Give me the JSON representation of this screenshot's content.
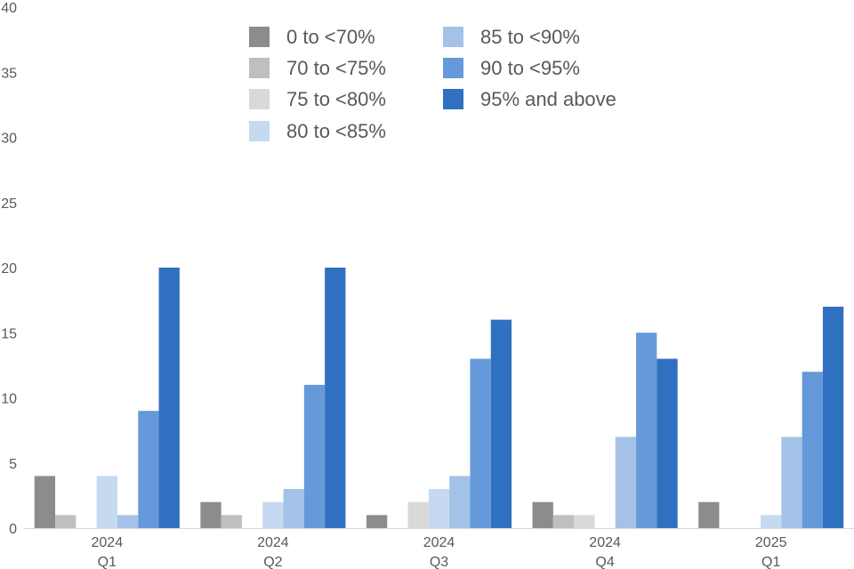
{
  "chart_data": {
    "type": "bar",
    "categories": [
      {
        "year": "2024",
        "quarter": "Q1"
      },
      {
        "year": "2024",
        "quarter": "Q2"
      },
      {
        "year": "2024",
        "quarter": "Q3"
      },
      {
        "year": "2024",
        "quarter": "Q4"
      },
      {
        "year": "2025",
        "quarter": "Q1"
      }
    ],
    "series": [
      {
        "name": "0 to <70%",
        "color": "#8c8c8c",
        "values": [
          4,
          2,
          1,
          2,
          2
        ]
      },
      {
        "name": "70 to <75%",
        "color": "#bfbfbf",
        "values": [
          1,
          1,
          0,
          1,
          0
        ]
      },
      {
        "name": "75 to <80%",
        "color": "#d9d9d9",
        "values": [
          0,
          0,
          2,
          1,
          0
        ]
      },
      {
        "name": "80 to <85%",
        "color": "#c5d9f1",
        "values": [
          4,
          2,
          3,
          0,
          1
        ]
      },
      {
        "name": "85 to <90%",
        "color": "#a4c2e8",
        "values": [
          1,
          3,
          4,
          7,
          7
        ]
      },
      {
        "name": "90 to <95%",
        "color": "#6699d9",
        "values": [
          9,
          11,
          13,
          15,
          12
        ]
      },
      {
        "name": "95% and above",
        "color": "#3070c0",
        "values": [
          20,
          20,
          16,
          13,
          17
        ]
      }
    ],
    "ylim": [
      0,
      40
    ],
    "yticks": [
      0,
      5,
      10,
      15,
      20,
      25,
      30,
      35,
      40
    ],
    "legend_placement": "top-center",
    "grid": false
  }
}
